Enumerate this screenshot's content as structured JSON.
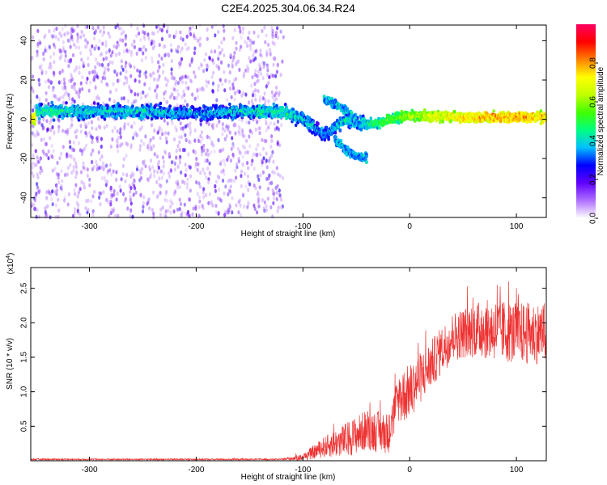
{
  "title": "C2E4.2025.304.06.34.R24",
  "chart_data": [
    {
      "type": "heatmap",
      "name": "spectrogram",
      "xlabel": "Height of straight line (km)",
      "ylabel": "Frequency (Hz)",
      "xlim": [
        -355,
        128
      ],
      "ylim": [
        -50,
        48
      ],
      "xticks": [
        -300,
        -200,
        -100,
        0,
        100
      ],
      "yticks": [
        -40,
        -20,
        0,
        20,
        40
      ],
      "colorbar": {
        "label": "Normalized spectral amplitude",
        "range": [
          0,
          1
        ],
        "ticks": [
          "0.0",
          "0.2",
          "0.4",
          "0.6",
          "0.8"
        ],
        "colors": [
          "#ffffff",
          "#b070ff",
          "#6000ff",
          "#0000ff",
          "#00c0ff",
          "#00ff80",
          "#40ff00",
          "#c0ff00",
          "#ffff00",
          "#ff8000",
          "#ff0000",
          "#ff0060"
        ]
      },
      "noise_region": {
        "x": [
          -355,
          -118
        ],
        "freq": [
          -50,
          48
        ]
      },
      "band": [
        {
          "x": -350,
          "freq": 4,
          "amp": 0.45
        },
        {
          "x": -300,
          "freq": 4,
          "amp": 0.4
        },
        {
          "x": -250,
          "freq": 4,
          "amp": 0.4
        },
        {
          "x": -200,
          "freq": 3,
          "amp": 0.35
        },
        {
          "x": -150,
          "freq": 4,
          "amp": 0.4
        },
        {
          "x": -120,
          "freq": 4,
          "amp": 0.45
        },
        {
          "x": -100,
          "freq": 0,
          "amp": 0.4
        },
        {
          "x": -80,
          "freq": -8,
          "amp": 0.35
        },
        {
          "x": -60,
          "freq": 0,
          "amp": 0.4
        },
        {
          "x": -40,
          "freq": -3,
          "amp": 0.45
        },
        {
          "x": 0,
          "freq": 2,
          "amp": 0.6
        },
        {
          "x": 50,
          "freq": 1,
          "amp": 0.75
        },
        {
          "x": 100,
          "freq": 1,
          "amp": 0.8
        },
        {
          "x": 128,
          "freq": 1,
          "amp": 0.75
        }
      ],
      "branches": [
        {
          "points": [
            [
              -80,
              10
            ],
            [
              -60,
              5
            ],
            [
              -45,
              -5
            ]
          ],
          "amp": 0.35
        },
        {
          "points": [
            [
              -70,
              -10
            ],
            [
              -55,
              -18
            ],
            [
              -40,
              -20
            ]
          ],
          "amp": 0.35
        }
      ]
    },
    {
      "type": "line",
      "name": "snr",
      "xlabel": "Height of straight line (km)",
      "ylabel": "SNR (10 * v/v)",
      "y_multiplier_label": "(x10",
      "y_multiplier_exp": "4",
      "y_multiplier_close": ")",
      "xlim": [
        -355,
        128
      ],
      "ylim": [
        0,
        2.8
      ],
      "xticks": [
        -300,
        -200,
        -100,
        0,
        100
      ],
      "yticks": [
        0.5,
        1.0,
        1.5,
        2.0,
        2.5
      ],
      "color": "#ee3333",
      "envelope": [
        {
          "x": -355,
          "mean": 0.02,
          "amp": 0.01
        },
        {
          "x": -120,
          "mean": 0.02,
          "amp": 0.01
        },
        {
          "x": -100,
          "mean": 0.05,
          "amp": 0.05
        },
        {
          "x": -80,
          "mean": 0.2,
          "amp": 0.15
        },
        {
          "x": -60,
          "mean": 0.3,
          "amp": 0.25
        },
        {
          "x": -40,
          "mean": 0.45,
          "amp": 0.3
        },
        {
          "x": -20,
          "mean": 0.4,
          "amp": 0.3
        },
        {
          "x": -10,
          "mean": 0.9,
          "amp": 0.4
        },
        {
          "x": 0,
          "mean": 1.0,
          "amp": 0.4
        },
        {
          "x": 20,
          "mean": 1.4,
          "amp": 0.35
        },
        {
          "x": 40,
          "mean": 1.8,
          "amp": 0.35
        },
        {
          "x": 60,
          "mean": 1.9,
          "amp": 0.4
        },
        {
          "x": 80,
          "mean": 1.9,
          "amp": 0.45
        },
        {
          "x": 100,
          "mean": 1.85,
          "amp": 0.45
        },
        {
          "x": 128,
          "mean": 1.85,
          "amp": 0.45
        }
      ]
    }
  ]
}
